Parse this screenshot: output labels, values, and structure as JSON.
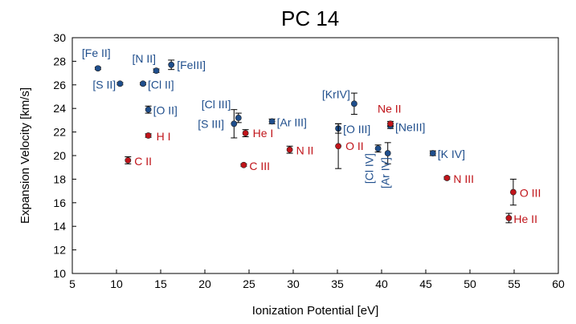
{
  "chart_data": {
    "type": "scatter",
    "title": "PC 14",
    "xlabel": "Ionization Potential [eV]",
    "ylabel": "Expansion Velocity [km/s]",
    "xlim": [
      5,
      60
    ],
    "ylim": [
      10,
      30
    ],
    "xticks": [
      5,
      10,
      15,
      20,
      25,
      30,
      35,
      40,
      45,
      50,
      55,
      60
    ],
    "yticks": [
      10,
      12,
      14,
      16,
      18,
      20,
      22,
      24,
      26,
      28,
      30
    ],
    "colors": {
      "blue": "#1f4e8c",
      "red": "#c0141a"
    },
    "series": [
      {
        "name": "blue",
        "points": [
          {
            "label": "[Fe II]",
            "x": 7.9,
            "y": 27.4,
            "err": 0.1
          },
          {
            "label": "[S II]",
            "x": 10.4,
            "y": 26.1,
            "err": 0.1
          },
          {
            "label": "[N II]",
            "x": 14.5,
            "y": 27.2,
            "err": 0.15
          },
          {
            "label": "[Cl II]",
            "x": 13.0,
            "y": 26.1,
            "err": 0.1
          },
          {
            "label": "[FeIII]",
            "x": 16.2,
            "y": 27.7,
            "err": 0.4
          },
          {
            "label": "[O II]",
            "x": 13.6,
            "y": 23.9,
            "err": 0.3
          },
          {
            "label": "[Cl III]",
            "x": 23.8,
            "y": 23.2,
            "err": 0.4
          },
          {
            "label": "[S III]",
            "x": 23.3,
            "y": 22.7,
            "err": 1.2
          },
          {
            "label": "[Ar III]",
            "x": 27.6,
            "y": 22.9,
            "err": 0.2
          },
          {
            "label": "[KrIV]",
            "x": 36.9,
            "y": 24.4,
            "err": 0.9
          },
          {
            "label": "[O III]",
            "x": 35.1,
            "y": 22.3,
            "err": 0.4
          },
          {
            "label": "[NeIII]",
            "x": 41.0,
            "y": 22.5,
            "err": 0.2
          },
          {
            "label": "[Cl IV]",
            "x": 39.6,
            "y": 20.6,
            "err": 0.3
          },
          {
            "label": "[Ar IV]",
            "x": 40.7,
            "y": 20.2,
            "err": 0.9
          },
          {
            "label": "[K IV]",
            "x": 45.8,
            "y": 20.2,
            "err": 0.2
          }
        ]
      },
      {
        "name": "red",
        "points": [
          {
            "label": "H I",
            "x": 13.6,
            "y": 21.7,
            "err": 0.15
          },
          {
            "label": "C II",
            "x": 11.3,
            "y": 19.6,
            "err": 0.3
          },
          {
            "label": "He I",
            "x": 24.6,
            "y": 21.9,
            "err": 0.3
          },
          {
            "label": "C III",
            "x": 24.4,
            "y": 19.2,
            "err": 0.1
          },
          {
            "label": "N II",
            "x": 29.6,
            "y": 20.5,
            "err": 0.3
          },
          {
            "label": "O II",
            "x": 35.1,
            "y": 20.8,
            "err": 1.9
          },
          {
            "label": "Ne II",
            "x": 41.0,
            "y": 22.7,
            "err": 0.2
          },
          {
            "label": "N III",
            "x": 47.4,
            "y": 18.1,
            "err": 0.1
          },
          {
            "label": "O III",
            "x": 54.9,
            "y": 16.9,
            "err": 1.1
          },
          {
            "label": "He II",
            "x": 54.4,
            "y": 14.7,
            "err": 0.4
          }
        ]
      }
    ]
  }
}
